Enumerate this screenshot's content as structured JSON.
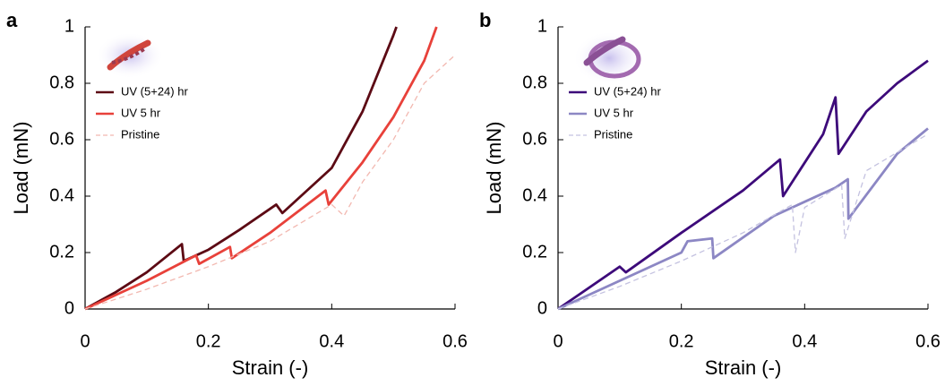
{
  "chart_data": [
    {
      "type": "line",
      "panel_label": "a",
      "xlabel": "Strain (-)",
      "ylabel": "Load (mN)",
      "xlim": [
        0,
        0.6
      ],
      "ylim": [
        0,
        1
      ],
      "xticks": [
        0,
        0.2,
        0.4,
        0.6
      ],
      "yticks": [
        0,
        0.2,
        0.4,
        0.6,
        0.8,
        1
      ],
      "legend": "upper left",
      "series": [
        {
          "name": "UV (5+24) hr",
          "color": "#5c0a14",
          "dashed": false,
          "x": [
            0,
            0.05,
            0.1,
            0.157,
            0.16,
            0.2,
            0.25,
            0.31,
            0.32,
            0.4,
            0.45,
            0.5,
            0.505
          ],
          "values": [
            0,
            0.06,
            0.13,
            0.23,
            0.17,
            0.21,
            0.28,
            0.37,
            0.34,
            0.5,
            0.7,
            0.97,
            1
          ]
        },
        {
          "name": "UV 5 hr",
          "color": "#e8413a",
          "dashed": false,
          "x": [
            0,
            0.1,
            0.18,
            0.185,
            0.235,
            0.238,
            0.3,
            0.39,
            0.395,
            0.45,
            0.5,
            0.55,
            0.57
          ],
          "values": [
            0,
            0.1,
            0.19,
            0.16,
            0.22,
            0.18,
            0.27,
            0.42,
            0.37,
            0.52,
            0.68,
            0.88,
            1
          ]
        },
        {
          "name": "Pristine",
          "color": "#f2b8b0",
          "dashed": true,
          "x": [
            0,
            0.1,
            0.2,
            0.3,
            0.4,
            0.42,
            0.45,
            0.5,
            0.55,
            0.6
          ],
          "values": [
            0,
            0.07,
            0.15,
            0.24,
            0.37,
            0.33,
            0.45,
            0.6,
            0.8,
            0.9
          ]
        }
      ]
    },
    {
      "type": "line",
      "panel_label": "b",
      "xlabel": "Strain (-)",
      "ylabel": "Load (mN)",
      "xlim": [
        0,
        0.6
      ],
      "ylim": [
        0,
        1
      ],
      "xticks": [
        0,
        0.2,
        0.4,
        0.6
      ],
      "yticks": [
        0,
        0.2,
        0.4,
        0.6,
        0.8,
        1
      ],
      "legend": "upper left",
      "series": [
        {
          "name": "UV (5+24) hr",
          "color": "#3d0a7a",
          "dashed": false,
          "x": [
            0,
            0.1,
            0.11,
            0.2,
            0.3,
            0.36,
            0.365,
            0.43,
            0.45,
            0.455,
            0.5,
            0.55,
            0.6
          ],
          "values": [
            0,
            0.15,
            0.13,
            0.27,
            0.42,
            0.53,
            0.4,
            0.62,
            0.75,
            0.55,
            0.7,
            0.8,
            0.88
          ]
        },
        {
          "name": "UV 5 hr",
          "color": "#8c87c4",
          "dashed": false,
          "x": [
            0,
            0.1,
            0.2,
            0.21,
            0.25,
            0.252,
            0.35,
            0.45,
            0.47,
            0.471,
            0.55,
            0.6
          ],
          "values": [
            0,
            0.1,
            0.2,
            0.24,
            0.25,
            0.18,
            0.33,
            0.43,
            0.46,
            0.32,
            0.55,
            0.64
          ]
        },
        {
          "name": "Pristine",
          "color": "#c4c2e0",
          "dashed": true,
          "x": [
            0,
            0.1,
            0.2,
            0.3,
            0.38,
            0.385,
            0.4,
            0.46,
            0.465,
            0.5,
            0.6
          ],
          "values": [
            0,
            0.08,
            0.17,
            0.27,
            0.37,
            0.2,
            0.36,
            0.44,
            0.25,
            0.49,
            0.62
          ]
        }
      ]
    }
  ]
}
